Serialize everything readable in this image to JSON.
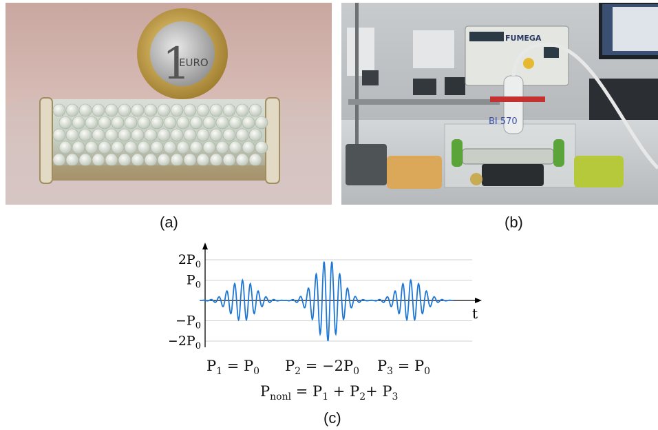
{
  "panel_labels": {
    "a": "(a)",
    "b": "(b)",
    "c": "(c)"
  },
  "photo_a": {
    "coin_text": "EURO",
    "coin_value": "1"
  },
  "photo_b": {
    "device_brand": "FUMEGA",
    "handwritten": "BI 570"
  },
  "chart_data": {
    "type": "line",
    "xlabel": "t",
    "ylabel": "",
    "ylim": [
      -2.1,
      2.1
    ],
    "y_ticks": [
      {
        "value": 2,
        "label": "2P",
        "sub": "0"
      },
      {
        "value": 1,
        "label": "P",
        "sub": "0"
      },
      {
        "value": -1,
        "label": "−P",
        "sub": "0"
      },
      {
        "value": -2,
        "label": "−2P",
        "sub": "0"
      }
    ],
    "series": [
      {
        "pulse": 1,
        "center": 0.14,
        "amplitude": 1.0,
        "sign": 1
      },
      {
        "pulse": 2,
        "center": 0.46,
        "amplitude": 2.0,
        "sign": -1
      },
      {
        "pulse": 3,
        "center": 0.77,
        "amplitude": 1.0,
        "sign": 1
      }
    ],
    "line_color": "#1f77d4",
    "grid": true
  },
  "equations": {
    "p1": {
      "lhs": "P",
      "lhs_sub": "1",
      "rhs": "P",
      "rhs_sub": "0",
      "prefix": ""
    },
    "p2": {
      "lhs": "P",
      "lhs_sub": "2",
      "rhs": "P",
      "rhs_sub": "0",
      "prefix": "−2"
    },
    "p3": {
      "lhs": "P",
      "lhs_sub": "3",
      "rhs": "P",
      "rhs_sub": "0",
      "prefix": ""
    },
    "pnonl": {
      "lhs": "P",
      "lhs_sub": "nonl",
      "t1": "P",
      "s1": "1",
      "t2": "P",
      "s2": "2",
      "t3": "P",
      "s3": "3"
    }
  }
}
